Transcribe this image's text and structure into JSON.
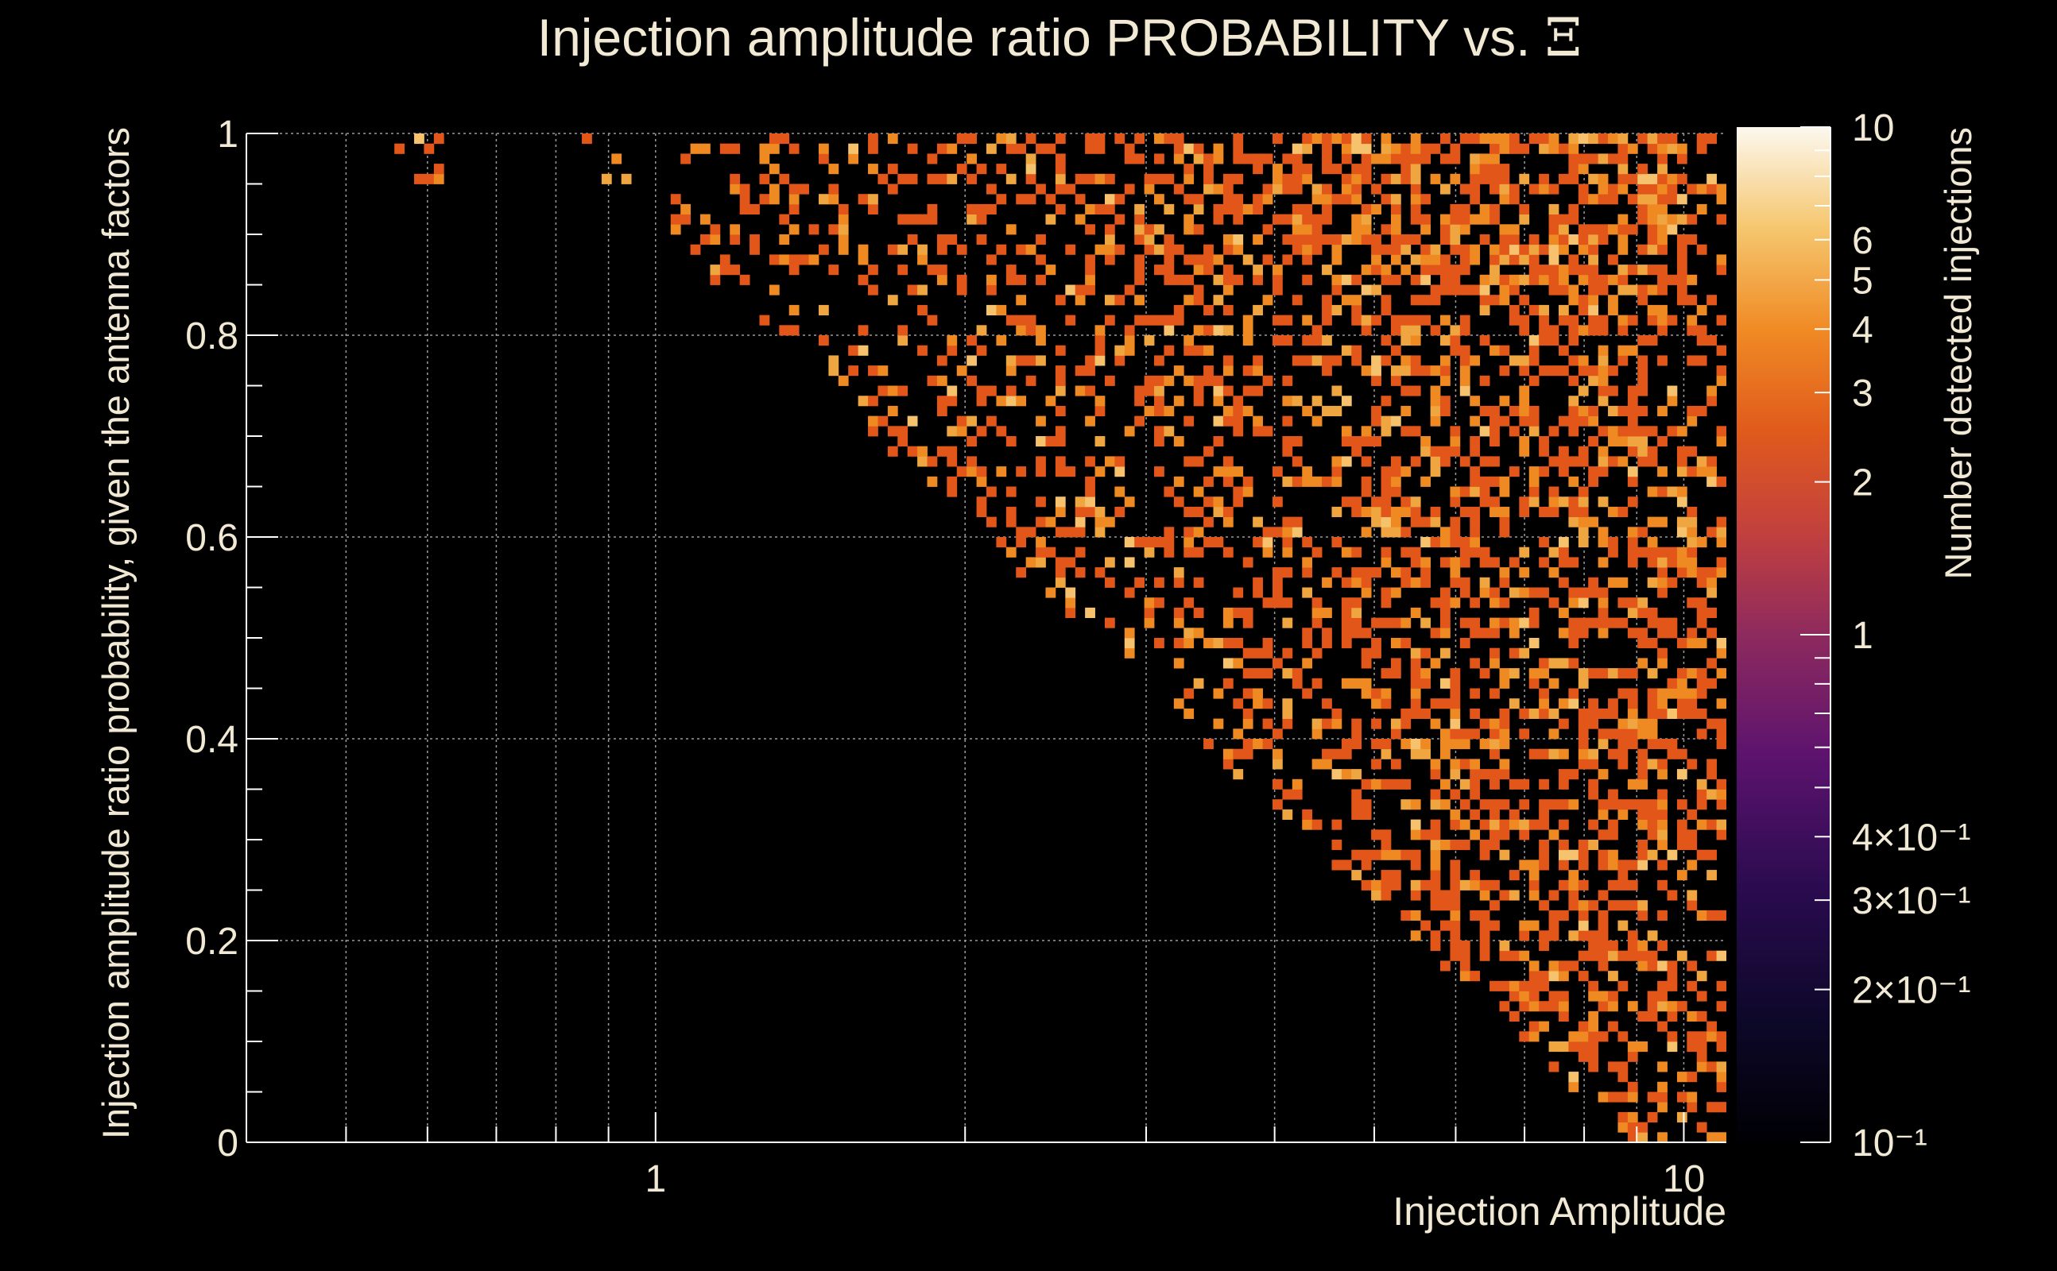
{
  "chart_data": {
    "type": "heatmap",
    "title": "Injection amplitude ratio PROBABILITY vs.",
    "title_symbol": "Ξ",
    "xlabel": "Injection Amplitude",
    "ylabel": "Injection amplitude ratio probability, given the antenna factors",
    "colorbar_label": "Number detected injections",
    "x_scale": "log",
    "xlim": [
      0.4,
      11
    ],
    "ylim": [
      0,
      1
    ],
    "z_scale": "log",
    "zlim": [
      0.1,
      10
    ],
    "x_ticks": [
      "1",
      "10"
    ],
    "y_ticks": [
      "0",
      "0.2",
      "0.4",
      "0.6",
      "0.8",
      "1"
    ],
    "colorbar_ticks": [
      "10",
      "6",
      "5",
      "4",
      "3",
      "2",
      "1",
      "4×10⁻¹",
      "3×10⁻¹",
      "2×10⁻¹",
      "10⁻¹"
    ],
    "colorbar_tick_values": [
      10,
      6,
      5,
      4,
      3,
      2,
      1,
      0.4,
      0.3,
      0.2,
      0.1
    ],
    "x_bins": 150,
    "y_bins": 100,
    "grid": true,
    "cell_value_distribution": {
      "1": "most common",
      "2": "common",
      "3": "occasional",
      "4": "rare"
    },
    "colormap": [
      "#000004",
      "#280b54",
      "#65156e",
      "#9f2a63",
      "#d44842",
      "#f57d15",
      "#fac127",
      "#fcffa4"
    ],
    "colors": {
      "background": "#000000",
      "text": "#f1e9d4",
      "axis": "#ffffff",
      "grid": "#aaaaaa"
    }
  }
}
